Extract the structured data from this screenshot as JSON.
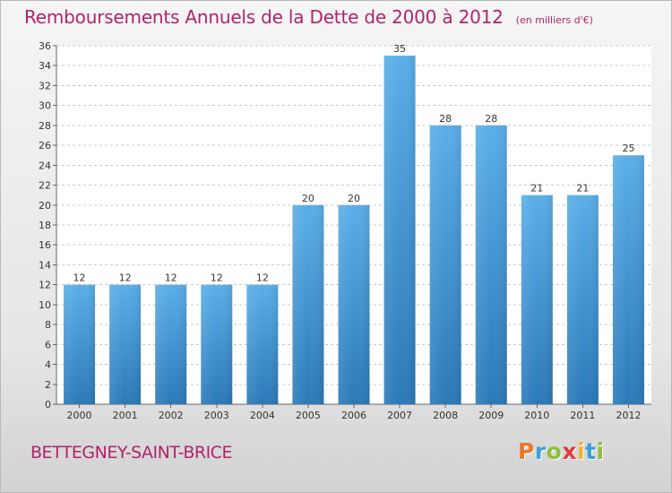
{
  "header": {
    "title": "Remboursements Annuels de la Dette de 2000 à 2012",
    "subtitle": "(en milliers d'€)"
  },
  "footer": {
    "place": "BETTEGNEY-SAINT-BRICE",
    "logo_letters": [
      "P",
      "r",
      "o",
      "x",
      "i",
      "t",
      "i"
    ],
    "logo_colors": [
      "#e8782c",
      "#3aa0d8",
      "#8dbf3c",
      "#e23b3b",
      "#f0b52a",
      "#3aa0d8",
      "#8dbf3c"
    ]
  },
  "colors": {
    "bar_top": "#5aaee8",
    "bar_bottom": "#2b79b8",
    "text_accent": "#b0246a",
    "axis_text": "#333333",
    "grid": "#c8c8c8"
  },
  "chart_data": {
    "type": "bar",
    "categories": [
      "2000",
      "2001",
      "2002",
      "2003",
      "2004",
      "2005",
      "2006",
      "2007",
      "2008",
      "2009",
      "2010",
      "2011",
      "2012"
    ],
    "values": [
      12,
      12,
      12,
      12,
      12,
      20,
      20,
      35,
      28,
      28,
      21,
      21,
      25
    ],
    "data_labels": [
      "12",
      "12",
      "12",
      "12",
      "12",
      "20",
      "20",
      "35",
      "28",
      "28",
      "21",
      "21",
      "25"
    ],
    "ylim": [
      0,
      36
    ],
    "yticks": [
      0,
      2,
      4,
      6,
      8,
      10,
      12,
      14,
      16,
      18,
      20,
      22,
      24,
      26,
      28,
      30,
      32,
      34,
      36
    ],
    "grid": true,
    "legend": "none"
  }
}
